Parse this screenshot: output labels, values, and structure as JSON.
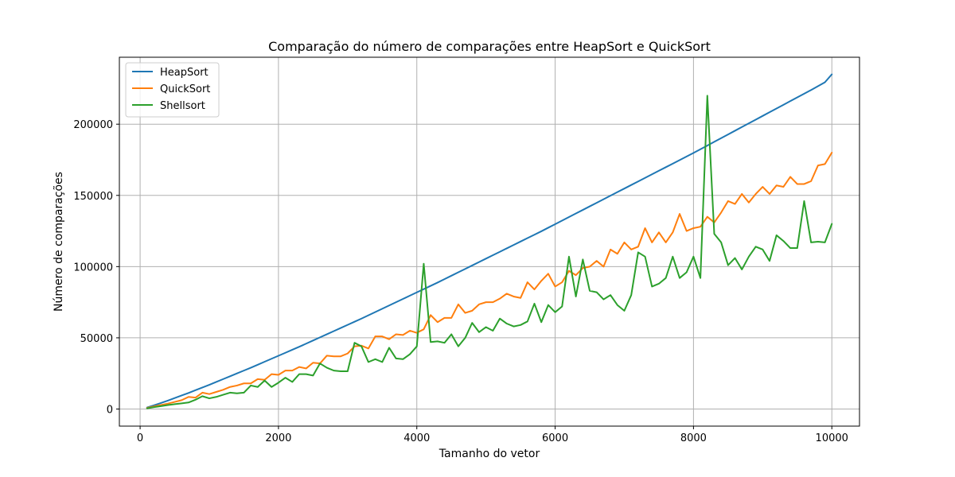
{
  "chart_data": {
    "type": "line",
    "title": "Comparação do número de comparações entre HeapSort e QuickSort",
    "xlabel": "Tamanho do vetor",
    "ylabel": "Número de comparações",
    "xlim": [
      -300,
      10400
    ],
    "ylim": [
      -12000,
      247000
    ],
    "xticks": [
      0,
      2000,
      4000,
      6000,
      8000,
      10000
    ],
    "xtick_labels": [
      "0",
      "2000",
      "4000",
      "6000",
      "8000",
      "10000"
    ],
    "yticks": [
      0,
      50000,
      100000,
      150000,
      200000
    ],
    "ytick_labels": [
      "0",
      "50000",
      "100000",
      "150000",
      "200000"
    ],
    "grid": true,
    "legend_position": "top-left",
    "x": [
      100,
      200,
      300,
      400,
      500,
      600,
      700,
      800,
      900,
      1000,
      1100,
      1200,
      1300,
      1400,
      1500,
      1600,
      1700,
      1800,
      1900,
      2000,
      2100,
      2200,
      2300,
      2400,
      2500,
      2600,
      2700,
      2800,
      2900,
      3000,
      3100,
      3200,
      3300,
      3400,
      3500,
      3600,
      3700,
      3800,
      3900,
      4000,
      4100,
      4200,
      4300,
      4400,
      4500,
      4600,
      4700,
      4800,
      4900,
      5000,
      5100,
      5200,
      5300,
      5400,
      5500,
      5600,
      5700,
      5800,
      5900,
      6000,
      6100,
      6200,
      6300,
      6400,
      6500,
      6600,
      6700,
      6800,
      6900,
      7000,
      7100,
      7200,
      7300,
      7400,
      7500,
      7600,
      7700,
      7800,
      7900,
      8000,
      8100,
      8200,
      8300,
      8400,
      8500,
      8600,
      8700,
      8800,
      8900,
      9000,
      9100,
      9200,
      9300,
      9400,
      9500,
      9600,
      9700,
      9800,
      9900,
      10000
    ],
    "series": [
      {
        "name": "HeapSort",
        "color": "#1f77b4",
        "values": [
          1100,
          2600,
          4200,
          5900,
          7700,
          9500,
          11300,
          13200,
          15100,
          17000,
          19000,
          21000,
          23000,
          25000,
          27000,
          29000,
          31100,
          33200,
          35300,
          37400,
          39500,
          41600,
          43700,
          45900,
          48100,
          50300,
          52500,
          54700,
          56900,
          59100,
          61300,
          63500,
          65800,
          68100,
          70400,
          72700,
          75000,
          77300,
          79600,
          81900,
          84200,
          86500,
          88800,
          91200,
          93600,
          96000,
          98400,
          100800,
          103200,
          105600,
          108000,
          110400,
          112800,
          115200,
          117600,
          120000,
          122400,
          124800,
          127300,
          129800,
          132300,
          134800,
          137300,
          139800,
          142300,
          144800,
          147300,
          149800,
          152300,
          154800,
          157300,
          159800,
          162300,
          164800,
          167300,
          169800,
          172300,
          174800,
          177300,
          179800,
          182400,
          185000,
          187600,
          190200,
          192800,
          195400,
          198000,
          200600,
          203200,
          205800,
          208400,
          211000,
          213600,
          216200,
          218800,
          221400,
          224000,
          226700,
          229400,
          235000
        ]
      },
      {
        "name": "QuickSort",
        "color": "#ff7f0e",
        "values": [
          800,
          1800,
          2800,
          3800,
          5000,
          6200,
          8500,
          8000,
          11500,
          10500,
          12000,
          13500,
          15500,
          16500,
          18000,
          18000,
          21000,
          20500,
          24500,
          24000,
          27000,
          27000,
          29500,
          28500,
          32500,
          32000,
          37500,
          37000,
          37000,
          39000,
          44000,
          44500,
          42500,
          51000,
          51000,
          49000,
          52500,
          52000,
          55000,
          53500,
          56000,
          66000,
          61000,
          64000,
          64000,
          73500,
          67500,
          69000,
          73500,
          75000,
          75000,
          77500,
          81000,
          79000,
          78000,
          89000,
          84000,
          90000,
          95000,
          86000,
          89000,
          97000,
          94000,
          99000,
          100000,
          104000,
          100000,
          112000,
          109000,
          117000,
          112000,
          114000,
          127000,
          117000,
          124000,
          117000,
          124000,
          137000,
          125000,
          127000,
          128000,
          135000,
          131000,
          138000,
          146000,
          144000,
          151000,
          145000,
          151000,
          156000,
          151000,
          157000,
          156000,
          163000,
          158000,
          158000,
          160000,
          171000,
          172000,
          180000
        ]
      },
      {
        "name": "Shellsort",
        "color": "#2ca02c",
        "values": [
          500,
          1300,
          2000,
          2800,
          3400,
          4000,
          4600,
          6500,
          9000,
          7500,
          8500,
          10000,
          11500,
          11000,
          11500,
          16500,
          15500,
          20000,
          15500,
          18500,
          22000,
          19000,
          24500,
          24500,
          23500,
          32000,
          29000,
          27000,
          26500,
          26500,
          46500,
          44000,
          33000,
          35000,
          33000,
          43000,
          35500,
          35000,
          38500,
          44000,
          102000,
          47000,
          47500,
          46500,
          52500,
          44000,
          50000,
          60500,
          54000,
          57500,
          55000,
          63500,
          60000,
          58000,
          59000,
          61500,
          74000,
          61000,
          73000,
          68000,
          72000,
          107000,
          79000,
          105000,
          83000,
          82000,
          77000,
          80000,
          73000,
          69000,
          80000,
          110000,
          107000,
          86000,
          88000,
          92000,
          107000,
          92000,
          96000,
          107000,
          92000,
          220000,
          123000,
          117000,
          101000,
          106000,
          98000,
          107000,
          114000,
          112000,
          104000,
          122000,
          118000,
          113000,
          113000,
          146000,
          117000,
          117500,
          117000,
          130000
        ]
      }
    ]
  }
}
